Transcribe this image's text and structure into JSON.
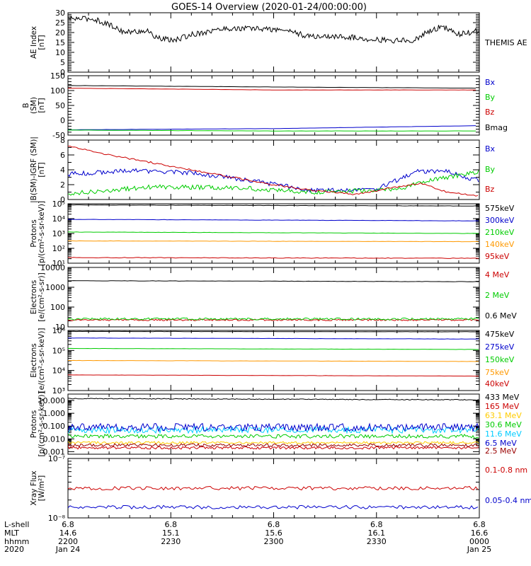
{
  "title": "GOES-14 Overview (2020-01-24/00:00:00)",
  "chart_data": [
    {
      "type": "line",
      "ylabel": [
        "AE Index",
        "[nT]"
      ],
      "ylim": [
        0,
        30
      ],
      "log": false,
      "yticks": [
        "0",
        "5",
        "10",
        "15",
        "20",
        "25",
        "30"
      ],
      "yticks_minor": 6,
      "series": [
        {
          "name": "THEMIS AE",
          "color": "#000000",
          "trend": [
            [
              0,
              27
            ],
            [
              0.06,
              27
            ],
            [
              0.1,
              24
            ],
            [
              0.14,
              20
            ],
            [
              0.19,
              21
            ],
            [
              0.22,
              17
            ],
            [
              0.26,
              16
            ],
            [
              0.3,
              19
            ],
            [
              0.38,
              22
            ],
            [
              0.46,
              22
            ],
            [
              0.54,
              21
            ],
            [
              0.58,
              18
            ],
            [
              0.66,
              18
            ],
            [
              0.72,
              17
            ],
            [
              0.78,
              16
            ],
            [
              0.84,
              16
            ],
            [
              0.88,
              21
            ],
            [
              0.91,
              23
            ],
            [
              0.95,
              19
            ],
            [
              1,
              21
            ]
          ],
          "noise": 1.4,
          "step": 1.5
        }
      ]
    },
    {
      "type": "line",
      "ylabel": [
        "B",
        "(SM)",
        "[nT]"
      ],
      "ylim": [
        -50,
        150
      ],
      "log": false,
      "yticks": [
        "-50",
        "0",
        "50",
        "100",
        "150"
      ],
      "yticks_minor": 5,
      "series": [
        {
          "name": "Bx",
          "color": "#0000cc",
          "trend": [
            [
              0,
              -32
            ],
            [
              0.5,
              -28
            ],
            [
              1,
              -18
            ]
          ],
          "noise": 0.3,
          "step": 6
        },
        {
          "name": "By",
          "color": "#00cc00",
          "trend": [
            [
              0,
              -33
            ],
            [
              0.5,
              -36
            ],
            [
              1,
              -36
            ]
          ],
          "noise": 0.3,
          "step": 6
        },
        {
          "name": "Bz",
          "color": "#cc0000",
          "trend": [
            [
              0,
              108
            ],
            [
              0.5,
              102
            ],
            [
              1,
              102
            ]
          ],
          "noise": 0.3,
          "step": 6
        },
        {
          "name": "Bmag",
          "color": "#000000",
          "trend": [
            [
              0,
              117
            ],
            [
              0.5,
              112
            ],
            [
              1,
              108
            ]
          ],
          "noise": 0.3,
          "step": 6
        }
      ]
    },
    {
      "type": "line",
      "ylabel": [
        "|B(SM)-IGRF (SM)|",
        "[nT]"
      ],
      "ylim": [
        0,
        8
      ],
      "log": false,
      "yticks": [
        "0",
        "2",
        "4",
        "6",
        "8"
      ],
      "yticks_minor": 2,
      "series": [
        {
          "name": "Bx",
          "color": "#0000cc",
          "trend": [
            [
              0,
              3.4
            ],
            [
              0.15,
              3.9
            ],
            [
              0.3,
              3.6
            ],
            [
              0.45,
              2.5
            ],
            [
              0.6,
              1.2
            ],
            [
              0.75,
              1.4
            ],
            [
              0.85,
              3.8
            ],
            [
              0.92,
              3.8
            ],
            [
              1,
              2.5
            ]
          ],
          "noise": 0.3,
          "step": 2
        },
        {
          "name": "By",
          "color": "#00cc00",
          "trend": [
            [
              0,
              0.8
            ],
            [
              0.2,
              1.7
            ],
            [
              0.4,
              1.6
            ],
            [
              0.6,
              1.0
            ],
            [
              0.72,
              1.2
            ],
            [
              0.8,
              1.4
            ],
            [
              0.9,
              2.8
            ],
            [
              1,
              3.7
            ]
          ],
          "noise": 0.3,
          "step": 2
        },
        {
          "name": "Bz",
          "color": "#cc0000",
          "trend": [
            [
              0,
              7.2
            ],
            [
              0.1,
              6.0
            ],
            [
              0.3,
              4.0
            ],
            [
              0.5,
              2.0
            ],
            [
              0.6,
              1.2
            ],
            [
              0.7,
              0.7
            ],
            [
              0.78,
              1.5
            ],
            [
              0.86,
              2.2
            ],
            [
              0.92,
              1.0
            ],
            [
              1,
              0.5
            ]
          ],
          "noise": 0.12,
          "step": 3
        }
      ]
    },
    {
      "type": "line",
      "ylabel": [
        "Protons",
        "[p/(cm²-s-sr-keV)]"
      ],
      "ylim": [
        1,
        5
      ],
      "log": true,
      "yticks": [
        "10¹",
        "10²",
        "10³",
        "10⁴",
        "10⁵"
      ],
      "yticks_minor": 9,
      "series": [
        {
          "name": "575keV",
          "color": "#000000",
          "trend": [
            [
              0,
              4.92
            ],
            [
              1,
              4.85
            ]
          ],
          "noise": 0.01,
          "step": 4
        },
        {
          "name": "300keV",
          "color": "#0000cc",
          "trend": [
            [
              0,
              3.95
            ],
            [
              1,
              3.85
            ]
          ],
          "noise": 0.01,
          "step": 4
        },
        {
          "name": "210keV",
          "color": "#00cc00",
          "trend": [
            [
              0,
              3.1
            ],
            [
              1,
              3.0
            ]
          ],
          "noise": 0.01,
          "step": 4
        },
        {
          "name": "140keV",
          "color": "#ff9900",
          "trend": [
            [
              0,
              2.5
            ],
            [
              1,
              2.45
            ]
          ],
          "noise": 0.01,
          "step": 4
        },
        {
          "name": "95keV",
          "color": "#cc0000",
          "trend": [
            [
              0,
              1.38
            ],
            [
              1,
              1.33
            ]
          ],
          "noise": 0.02,
          "step": 4
        }
      ]
    },
    {
      "type": "line",
      "ylabel": [
        "Electrons",
        "[e/(cm²-s-sr)]"
      ],
      "ylim": [
        1,
        4
      ],
      "log": true,
      "yticks": [
        "10",
        "100",
        "1000",
        "10000"
      ],
      "yticks_minor": 9,
      "series": [
        {
          "name": "4 MeV",
          "color": "#cc0000",
          "trend": [
            [
              0,
              1.35
            ],
            [
              1,
              1.35
            ]
          ],
          "noise": 0.04,
          "step": 2
        },
        {
          "name": "2 MeV",
          "color": "#00cc00",
          "trend": [
            [
              0,
              1.4
            ],
            [
              1,
              1.4
            ]
          ],
          "noise": 0.05,
          "step": 2
        },
        {
          "name": "0.6 MeV",
          "color": "#000000",
          "trend": [
            [
              0,
              3.33
            ],
            [
              1,
              3.28
            ]
          ],
          "noise": 0.008,
          "step": 4
        }
      ]
    },
    {
      "type": "line",
      "ylabel": [
        "Electrons",
        "[e/(cm²-s-sr-keV)]"
      ],
      "ylim": [
        3,
        6
      ],
      "log": true,
      "yticks": [
        "10³",
        "10⁴",
        "10⁵",
        "10⁶"
      ],
      "yticks_minor": 9,
      "series": [
        {
          "name": "475keV",
          "color": "#000000",
          "trend": [
            [
              0,
              5.95
            ],
            [
              1,
              5.93
            ]
          ],
          "noise": 0.005,
          "step": 4
        },
        {
          "name": "275keV",
          "color": "#0000cc",
          "trend": [
            [
              0,
              5.62
            ],
            [
              1,
              5.57
            ]
          ],
          "noise": 0.005,
          "step": 4
        },
        {
          "name": "150keV",
          "color": "#00cc00",
          "trend": [
            [
              0,
              5.1
            ],
            [
              1,
              5.05
            ]
          ],
          "noise": 0.005,
          "step": 4
        },
        {
          "name": "75keV",
          "color": "#ff9900",
          "trend": [
            [
              0,
              4.5
            ],
            [
              1,
              4.45
            ]
          ],
          "noise": 0.005,
          "step": 4
        },
        {
          "name": "40keV",
          "color": "#cc0000",
          "trend": [
            [
              0,
              3.78
            ],
            [
              1,
              3.72
            ]
          ],
          "noise": 0.005,
          "step": 4
        }
      ]
    },
    {
      "type": "line",
      "ylabel": [
        "Protons",
        "[p/(cm²-s-sr-keV)]"
      ],
      "ylim": [
        -3.2,
        1.5
      ],
      "log": true,
      "yticks": [
        "0.001",
        "0.010",
        "0.100",
        "1.000",
        "10.000"
      ],
      "ytick_values": [
        -3,
        -2,
        -1,
        0,
        1
      ],
      "yticks_minor": 9,
      "series": [
        {
          "name": "433 MeV",
          "color": "#000000",
          "trend": [
            [
              0,
              1.15
            ],
            [
              1,
              1.05
            ]
          ],
          "noise": 0.03,
          "step": 2
        },
        {
          "name": "165 MeV",
          "color": "#cc0000",
          "trend": [
            [
              0,
              -2.7
            ],
            [
              1,
              -2.7
            ]
          ],
          "noise": 0.1,
          "step": 2
        },
        {
          "name": "63.1 MeV",
          "color": "#ffcc00",
          "trend": [
            [
              0,
              -2.3
            ],
            [
              1,
              -2.3
            ]
          ],
          "noise": 0.1,
          "step": 2
        },
        {
          "name": "30.6 MeV",
          "color": "#00cc00",
          "trend": [
            [
              0,
              -1.8
            ],
            [
              1,
              -1.8
            ]
          ],
          "noise": 0.15,
          "step": 2
        },
        {
          "name": "11.6 MeV",
          "color": "#00ccff",
          "trend": [
            [
              0,
              -1.3
            ],
            [
              1,
              -1.3
            ]
          ],
          "noise": 0.25,
          "step": 2
        },
        {
          "name": "6.5 MeV",
          "color": "#0000cc",
          "trend": [
            [
              0,
              -1.1
            ],
            [
              1,
              -1.1
            ]
          ],
          "noise": 0.3,
          "step": 2
        },
        {
          "name": "2.5 MeV",
          "color": "#990000",
          "trend": [
            [
              0,
              -2.5
            ],
            [
              1,
              -2.5
            ]
          ],
          "noise": 0.12,
          "step": 2
        }
      ]
    },
    {
      "type": "line",
      "ylabel": [
        "Xray Flux",
        "[W/m²]"
      ],
      "ylim": [
        -8,
        -7
      ],
      "log": true,
      "yticks": [
        "10⁻⁸",
        "10⁻⁷"
      ],
      "yticks_minor": 9,
      "series": [
        {
          "name": "0.1-0.8 nm",
          "color": "#cc0000",
          "trend": [
            [
              0,
              -7.5
            ],
            [
              1,
              -7.5
            ]
          ],
          "noise": 0.03,
          "step": 3
        },
        {
          "name": "0.05-0.4 nm",
          "color": "#0000cc",
          "trend": [
            [
              0,
              -7.82
            ],
            [
              1,
              -7.82
            ]
          ],
          "noise": 0.03,
          "step": 3
        }
      ]
    }
  ],
  "xaxis": {
    "row_labels": [
      "L-shell",
      "MLT",
      "hhmm",
      "2020"
    ],
    "ticks": [
      {
        "values": [
          "6.8",
          "14.6",
          "2200",
          "Jan 24"
        ]
      },
      {
        "values": [
          "6.8",
          "15.1",
          "2230",
          ""
        ]
      },
      {
        "values": [
          "6.8",
          "15.6",
          "2300",
          ""
        ]
      },
      {
        "values": [
          "6.8",
          "16.1",
          "2330",
          ""
        ]
      },
      {
        "values": [
          "6.8",
          "16.6",
          "0000",
          "Jan 25"
        ]
      }
    ],
    "minor_ticks": 5
  }
}
